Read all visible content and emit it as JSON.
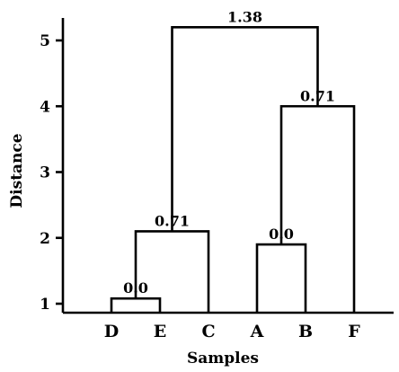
{
  "chart_data": {
    "type": "dendrogram",
    "xlabel": "Samples",
    "ylabel": "Distance",
    "y_ticks": [
      1,
      2,
      3,
      4,
      5
    ],
    "ylim": [
      0.75,
      5.4
    ],
    "leaves": [
      "D",
      "E",
      "C",
      "A",
      "B",
      "F"
    ],
    "leaf_baseline": 0.75,
    "merges": [
      {
        "id": "m_DE",
        "children": [
          "D",
          "E"
        ],
        "height": 1.08,
        "label": "0.0"
      },
      {
        "id": "m_DEC",
        "children": [
          "m_DE",
          "C"
        ],
        "height": 2.1,
        "label": "0.71"
      },
      {
        "id": "m_AB",
        "children": [
          "A",
          "B"
        ],
        "height": 1.9,
        "label": "0.0"
      },
      {
        "id": "m_ABF",
        "children": [
          "m_AB",
          "F"
        ],
        "height": 4.0,
        "label": "0.71"
      },
      {
        "id": "m_root",
        "children": [
          "m_DEC",
          "m_ABF"
        ],
        "height": 5.2,
        "label": "1.38"
      }
    ],
    "grid": false,
    "legend": "none"
  }
}
